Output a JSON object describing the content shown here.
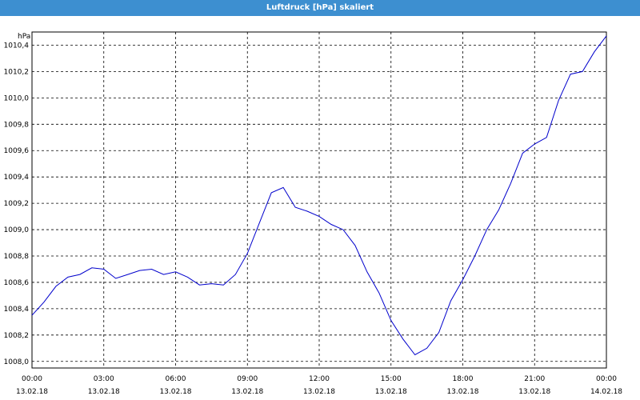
{
  "window": {
    "title": "Luftdruck [hPa] skaliert",
    "title_bar_color": "#3d8fd0"
  },
  "chart_data": {
    "type": "line",
    "title": "Luftdruck [hPa] skaliert",
    "ylabel": "hPa",
    "xlabel": "",
    "ylim": [
      7.95,
      10.5
    ],
    "y_scale_note": "hPa values shown as 1008,0 … 1010,4",
    "y_ticks": [
      "1008,0",
      "1008,2",
      "1008,4",
      "1008,6",
      "1008,8",
      "1009,0",
      "1009,2",
      "1009,4",
      "1009,6",
      "1009,8",
      "1010,0",
      "1010,2",
      "1010,4"
    ],
    "x_ticks": [
      {
        "time": "00:00",
        "date": "13.02.18"
      },
      {
        "time": "03:00",
        "date": "13.02.18"
      },
      {
        "time": "06:00",
        "date": "13.02.18"
      },
      {
        "time": "09:00",
        "date": "13.02.18"
      },
      {
        "time": "12:00",
        "date": "13.02.18"
      },
      {
        "time": "15:00",
        "date": "13.02.18"
      },
      {
        "time": "18:00",
        "date": "13.02.18"
      },
      {
        "time": "21:00",
        "date": "13.02.18"
      },
      {
        "time": "00:00",
        "date": "14.02.18"
      }
    ],
    "grid": true,
    "line_color": "#0000cc",
    "series": [
      {
        "x": [
          0,
          0.5,
          1,
          1.5,
          2,
          2.5,
          3,
          3.5,
          4,
          4.5,
          5,
          5.5,
          6,
          6.5,
          7,
          7.5,
          8,
          8.5,
          9,
          9.5,
          10,
          10.5,
          11,
          11.5,
          12,
          12.5,
          13,
          13.5,
          14,
          14.5,
          15,
          15.5,
          16,
          16.5,
          17,
          17.5,
          18,
          18.5,
          19,
          19.5,
          20,
          20.5,
          21,
          21.5,
          22,
          22.5,
          23,
          23.5,
          24
        ],
        "y": [
          1008.35,
          1008.45,
          1008.57,
          1008.64,
          1008.66,
          1008.71,
          1008.7,
          1008.63,
          1008.66,
          1008.69,
          1008.7,
          1008.66,
          1008.68,
          1008.64,
          1008.58,
          1008.59,
          1008.58,
          1008.66,
          1008.82,
          1009.05,
          1009.28,
          1009.32,
          1009.17,
          1009.14,
          1009.1,
          1009.04,
          1009.0,
          1008.88,
          1008.68,
          1008.52,
          1008.31,
          1008.17,
          1008.05,
          1008.1,
          1008.22,
          1008.46,
          1008.62,
          1008.8,
          1009.0,
          1009.15,
          1009.35,
          1009.58,
          1009.65,
          1009.7,
          1009.98,
          1010.18,
          1010.2,
          1010.35,
          1010.47
        ]
      }
    ]
  }
}
